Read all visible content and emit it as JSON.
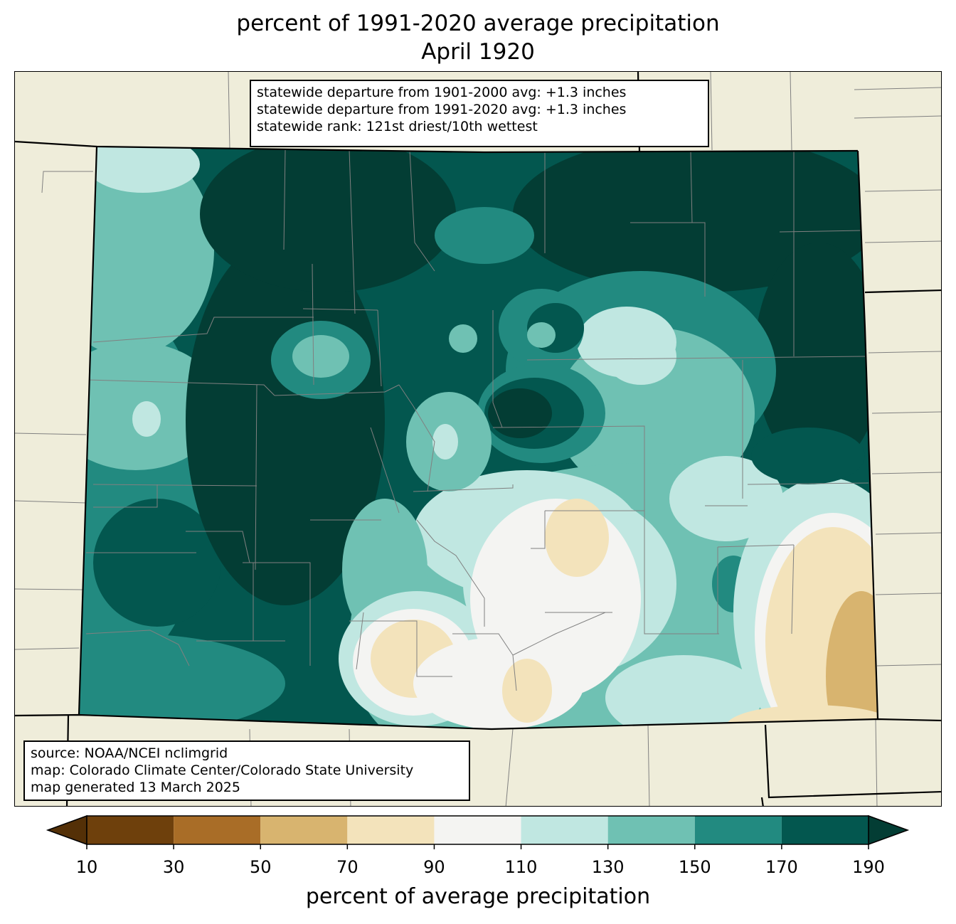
{
  "title": {
    "line1": "percent of 1991-2020 average precipitation",
    "line2": "April 1920"
  },
  "stats_box": {
    "line1": "statewide departure from 1901-2000 avg: +1.3 inches",
    "line2": "statewide departure from 1991-2020 avg: +1.3 inches",
    "line3": "statewide rank: 121st driest/10th wettest"
  },
  "source_box": {
    "line1": "source: NOAA/NCEI nclimgrid",
    "line2": "map: Colorado Climate Center/Colorado State University",
    "line3": "map generated 13 March 2025"
  },
  "colorbar": {
    "label": "percent of average precipitation",
    "ticks": [
      "10",
      "30",
      "50",
      "70",
      "90",
      "110",
      "130",
      "150",
      "170",
      "190"
    ],
    "bins": [
      {
        "range": [
          10,
          30
        ],
        "color": "#6e400c"
      },
      {
        "range": [
          30,
          50
        ],
        "color": "#a96d27"
      },
      {
        "range": [
          50,
          70
        ],
        "color": "#d8b46f"
      },
      {
        "range": [
          70,
          90
        ],
        "color": "#f3e3bb"
      },
      {
        "range": [
          90,
          110
        ],
        "color": "#f4f4f2"
      },
      {
        "range": [
          110,
          130
        ],
        "color": "#c0e7e1"
      },
      {
        "range": [
          130,
          150
        ],
        "color": "#6fc1b3"
      },
      {
        "range": [
          150,
          170
        ],
        "color": "#228a80"
      },
      {
        "range": [
          170,
          190
        ],
        "color": "#03574f"
      }
    ],
    "under_color": "#543007",
    "over_color": "#033d34"
  },
  "colors": {
    "land": "#efedda",
    "state_border": "#000000",
    "county_border": "#808080"
  }
}
